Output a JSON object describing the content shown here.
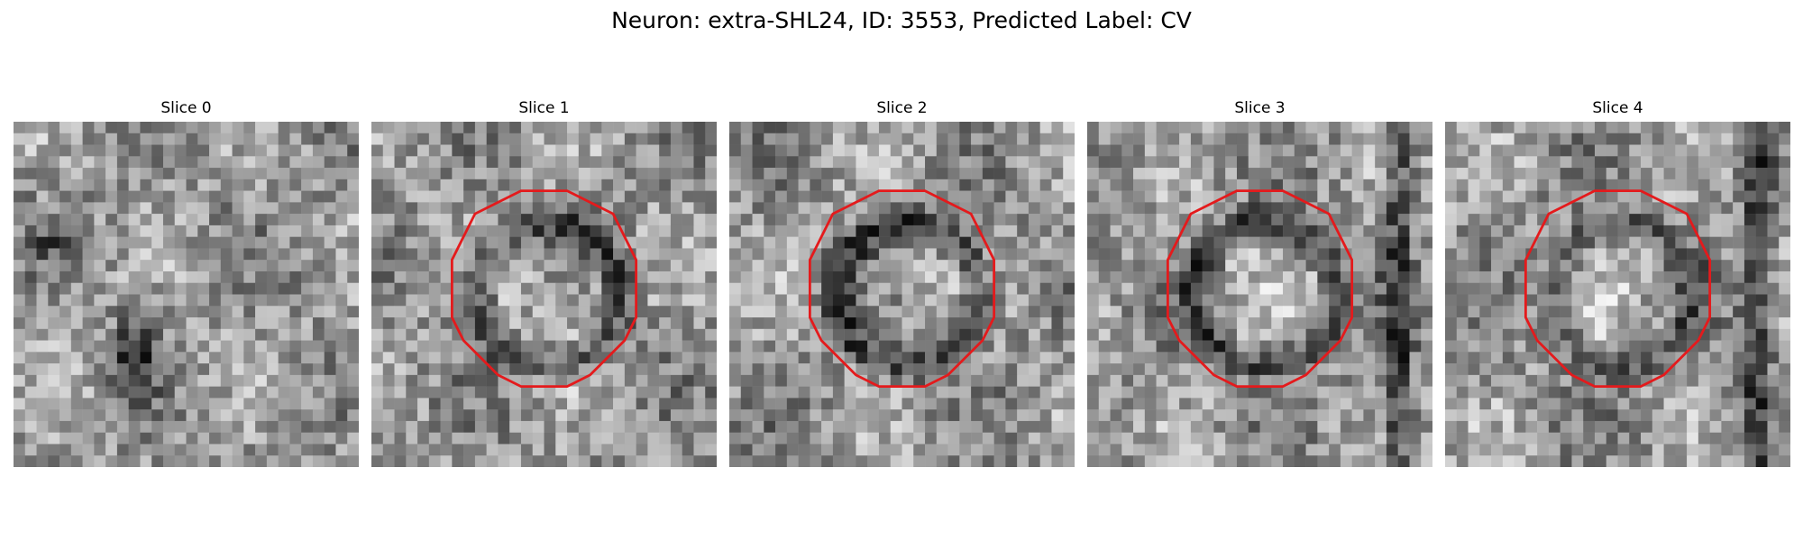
{
  "figure": {
    "title": "Neuron: extra-SHL24, ID: 3553, Predicted Label: CV",
    "outline_color": "#e41a1c"
  },
  "panels": [
    {
      "title": "Slice 0",
      "seed": 11,
      "outline": false,
      "ring_strength": 0.0
    },
    {
      "title": "Slice 1",
      "seed": 23,
      "outline": true,
      "ring_strength": 0.55
    },
    {
      "title": "Slice 2",
      "seed": 37,
      "outline": true,
      "ring_strength": 0.75
    },
    {
      "title": "Slice 3",
      "seed": 51,
      "outline": true,
      "ring_strength": 0.65
    },
    {
      "title": "Slice 4",
      "seed": 73,
      "outline": true,
      "ring_strength": 0.45
    }
  ]
}
